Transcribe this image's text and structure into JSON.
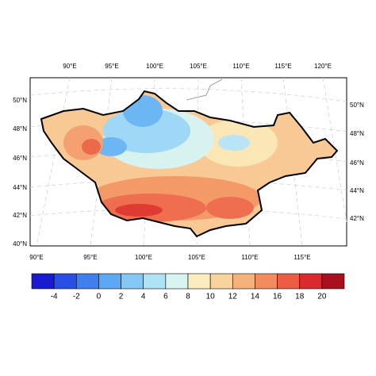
{
  "map": {
    "top_labels": [
      "90°E",
      "95°E",
      "100°E",
      "105°E",
      "110°E",
      "115°E",
      "120°E"
    ],
    "bottom_labels": [
      "90°E",
      "95°E",
      "100°E",
      "105°E",
      "110°E",
      "115°E"
    ],
    "left_labels": [
      "50°N",
      "48°N",
      "46°N",
      "44°N",
      "42°N",
      "40°N"
    ],
    "right_labels": [
      "50°N",
      "48°N",
      "46°N",
      "44°N",
      "42°N"
    ]
  },
  "colorbar": {
    "labels": [
      -4,
      -2,
      0,
      2,
      4,
      6,
      8,
      10,
      12,
      14,
      16,
      18,
      20
    ],
    "colors": [
      "#1a1ad0",
      "#2a4fe6",
      "#3f80ee",
      "#5ca8f4",
      "#84c8f6",
      "#aee2f6",
      "#d8f4ee",
      "#fbedbd",
      "#f9d39c",
      "#f6b27c",
      "#f28c5e",
      "#ec5d44",
      "#d92a2e",
      "#a8101e"
    ]
  }
}
